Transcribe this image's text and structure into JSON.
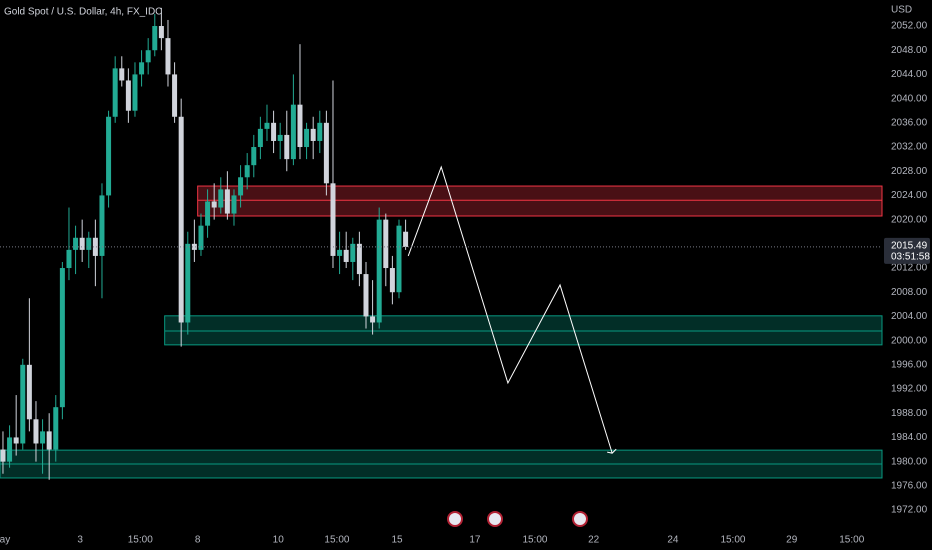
{
  "chart_data": {
    "type": "candlestick",
    "title": "Gold Spot / U.S. Dollar, 4h, FX_IDC",
    "currency": "USD",
    "countdown": "03:51:58",
    "up_color": "#22ab94",
    "down_color": "#d1d4dc",
    "x": [
      0,
      1,
      2,
      3,
      4,
      5,
      6,
      7,
      8,
      9,
      10,
      11,
      12,
      13,
      14,
      15,
      16,
      17,
      18,
      19,
      20,
      21,
      22,
      23,
      24,
      25,
      26,
      27,
      28,
      29,
      30,
      31,
      32,
      33,
      34,
      35,
      36,
      37,
      38,
      39,
      40,
      41,
      42,
      43,
      44,
      45,
      46,
      47,
      48,
      49,
      50,
      51,
      52,
      53,
      54,
      55,
      56,
      57,
      58,
      59,
      60,
      61
    ],
    "open": [
      1982,
      1980,
      1984,
      1983,
      1996,
      1987,
      1983,
      1985,
      1982,
      1989,
      2012,
      2015,
      2017,
      2015,
      2017,
      2014,
      2024,
      2037,
      2045,
      2043,
      2038,
      2044,
      2046,
      2048,
      2052,
      2050,
      2044,
      2037,
      2003,
      2016,
      2015,
      2019,
      2023,
      2022,
      2025,
      2021,
      2024,
      2027,
      2029,
      2032,
      2035,
      2036,
      2033,
      2034,
      2030,
      2039,
      2032,
      2035,
      2033,
      2036,
      2026,
      2014,
      2015,
      2013,
      2016,
      2011,
      2004,
      2003,
      2020,
      2012,
      2008,
      2018
    ],
    "high": [
      1985,
      1986,
      1991,
      1997,
      2007,
      1990,
      1987,
      1988,
      1991,
      2013,
      2022,
      2019,
      2020,
      2018,
      2020,
      2026,
      2038,
      2047,
      2047,
      2045,
      2046,
      2048,
      2050,
      2054,
      2055,
      2053,
      2046,
      2040,
      2018,
      2020,
      2021,
      2025,
      2026,
      2027,
      2028,
      2025,
      2029,
      2031,
      2034,
      2037,
      2039,
      2038,
      2036,
      2038,
      2044,
      2049,
      2036,
      2037,
      2038,
      2038,
      2043,
      2018,
      2018,
      2017,
      2018,
      2013,
      2010,
      2022,
      2021,
      2014,
      2020,
      2020
    ],
    "low": [
      1978,
      1979,
      1981,
      1982,
      1985,
      1980,
      1978,
      1977,
      1980,
      1987,
      2010,
      2011,
      2013,
      2012,
      2009,
      2007,
      2022,
      2036,
      2042,
      2036,
      2037,
      2042,
      2044,
      2047,
      2048,
      2042,
      2036,
      1999,
      2001,
      2013,
      2014,
      2017,
      2020,
      2021,
      2020,
      2019,
      2022,
      2025,
      2027,
      2030,
      2033,
      2031,
      2030,
      2028,
      2029,
      2030,
      2030,
      2030,
      2031,
      2024,
      2012,
      2011,
      2012,
      2010,
      2009,
      2002,
      2001,
      2002,
      2009,
      2006,
      2007,
      2015
    ],
    "close": [
      1980,
      1984,
      1983,
      1996,
      1987,
      1983,
      1985,
      1982,
      1989,
      2012,
      2015,
      2017,
      2015,
      2017,
      2014,
      2024,
      2037,
      2045,
      2043,
      2038,
      2044,
      2046,
      2048,
      2052,
      2050,
      2044,
      2037,
      2003,
      2016,
      2015,
      2019,
      2023,
      2022,
      2025,
      2021,
      2024,
      2027,
      2029,
      2032,
      2035,
      2036,
      2033,
      2034,
      2030,
      2039,
      2032,
      2035,
      2033,
      2036,
      2026,
      2014,
      2015,
      2013,
      2016,
      2011,
      2004,
      2003,
      2020,
      2012,
      2008,
      2019,
      2015.49
    ],
    "zones": [
      {
        "top": 2025.55,
        "mid": 2023.2,
        "bottom": 2020.6,
        "x_start": 29.5,
        "color": "#f23645"
      },
      {
        "top": 2004.1,
        "mid": 2001.6,
        "bottom": 1999.3,
        "x_start": 24.5,
        "color": "#089981"
      },
      {
        "top": 1981.9,
        "mid": 1979.6,
        "bottom": 1977.3,
        "x_start": -0.45,
        "color": "#089981"
      }
    ],
    "projection": {
      "x": [
        61.4,
        66.4,
        76.5,
        84.4,
        92.3
      ],
      "values": [
        2014.0,
        2028.7,
        1993.0,
        2009.2,
        1981.4
      ],
      "color": "#ffffff"
    },
    "xlim": [
      -0.45,
      133.18
    ],
    "ylim": [
      1968.7,
      2056.3
    ],
    "xticks": [
      {
        "value": 0.3,
        "label": "ay"
      },
      {
        "value": 11.7,
        "label": "3"
      },
      {
        "value": 20.8,
        "label": "15:00"
      },
      {
        "value": 29.5,
        "label": "8"
      },
      {
        "value": 41.7,
        "label": "10"
      },
      {
        "value": 50.6,
        "label": "15:00"
      },
      {
        "value": 59.7,
        "label": "15"
      },
      {
        "value": 71.5,
        "label": "17"
      },
      {
        "value": 80.6,
        "label": "15:00"
      },
      {
        "value": 89.5,
        "label": "22"
      },
      {
        "value": 101.5,
        "label": "24"
      },
      {
        "value": 110.6,
        "label": "15:00"
      },
      {
        "value": 119.5,
        "label": "29"
      },
      {
        "value": 128.6,
        "label": "15:00"
      }
    ],
    "yticks": [
      {
        "value": 2052,
        "label": "2052.00"
      },
      {
        "value": 2048,
        "label": "2048.00"
      },
      {
        "value": 2044,
        "label": "2044.00"
      },
      {
        "value": 2040,
        "label": "2040.00"
      },
      {
        "value": 2036,
        "label": "2036.00"
      },
      {
        "value": 2032,
        "label": "2032.00"
      },
      {
        "value": 2028,
        "label": "2028.00"
      },
      {
        "value": 2024,
        "label": "2024.00"
      },
      {
        "value": 2020,
        "label": "2020.00"
      },
      {
        "value": 2012,
        "label": "2012.00"
      },
      {
        "value": 2008,
        "label": "2008.00"
      },
      {
        "value": 2004,
        "label": "2004.00"
      },
      {
        "value": 2000,
        "label": "2000.00"
      },
      {
        "value": 1996,
        "label": "1996.00"
      },
      {
        "value": 1992,
        "label": "1992.00"
      },
      {
        "value": 1988,
        "label": "1988.00"
      },
      {
        "value": 1984,
        "label": "1984.00"
      },
      {
        "value": 1980,
        "label": "1980.00"
      },
      {
        "value": 1976,
        "label": "1976.00"
      },
      {
        "value": 1972,
        "label": "1972.00"
      }
    ]
  }
}
